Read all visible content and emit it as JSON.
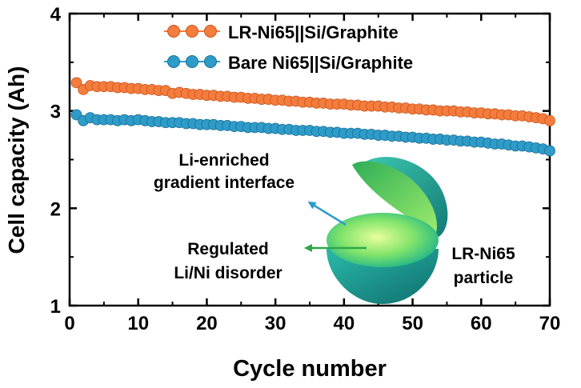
{
  "chart_data": {
    "type": "scatter",
    "xlabel": "Cycle number",
    "ylabel": "Cell capacity (Ah)",
    "xlim": [
      0,
      70
    ],
    "ylim": [
      1,
      4
    ],
    "xticks": [
      "0",
      "10",
      "20",
      "30",
      "40",
      "50",
      "60",
      "70"
    ],
    "yticks": [
      "1",
      "2",
      "3",
      "4"
    ],
    "legend_position": "top-right",
    "series": [
      {
        "name": "LR-Ni65||Si/Graphite",
        "color": "#F47C3C",
        "x": [
          1,
          2,
          3,
          4,
          5,
          6,
          7,
          8,
          9,
          10,
          11,
          12,
          13,
          14,
          15,
          16,
          17,
          18,
          19,
          20,
          21,
          22,
          23,
          24,
          25,
          26,
          27,
          28,
          29,
          30,
          31,
          32,
          33,
          34,
          35,
          36,
          37,
          38,
          39,
          40,
          41,
          42,
          43,
          44,
          45,
          46,
          47,
          48,
          49,
          50,
          51,
          52,
          53,
          54,
          55,
          56,
          57,
          58,
          59,
          60,
          61,
          62,
          63,
          64,
          65,
          66,
          67,
          68,
          69,
          70
        ],
        "y": [
          3.29,
          3.22,
          3.26,
          3.25,
          3.25,
          3.25,
          3.24,
          3.24,
          3.23,
          3.23,
          3.22,
          3.22,
          3.21,
          3.21,
          3.18,
          3.19,
          3.18,
          3.17,
          3.17,
          3.16,
          3.16,
          3.15,
          3.15,
          3.14,
          3.14,
          3.13,
          3.13,
          3.12,
          3.12,
          3.11,
          3.11,
          3.1,
          3.1,
          3.09,
          3.09,
          3.08,
          3.08,
          3.07,
          3.07,
          3.07,
          3.06,
          3.06,
          3.05,
          3.05,
          3.05,
          3.04,
          3.04,
          3.03,
          3.03,
          3.02,
          3.02,
          3.01,
          3.01,
          3.0,
          3.0,
          3.0,
          2.99,
          2.99,
          2.98,
          2.98,
          2.97,
          2.97,
          2.96,
          2.96,
          2.95,
          2.95,
          2.94,
          2.93,
          2.92,
          2.9
        ]
      },
      {
        "name": "Bare Ni65||Si/Graphite",
        "color": "#2E9CC9",
        "x": [
          1,
          2,
          3,
          4,
          5,
          6,
          7,
          8,
          9,
          10,
          11,
          12,
          13,
          14,
          15,
          16,
          17,
          18,
          19,
          20,
          21,
          22,
          23,
          24,
          25,
          26,
          27,
          28,
          29,
          30,
          31,
          32,
          33,
          34,
          35,
          36,
          37,
          38,
          39,
          40,
          41,
          42,
          43,
          44,
          45,
          46,
          47,
          48,
          49,
          50,
          51,
          52,
          53,
          54,
          55,
          56,
          57,
          58,
          59,
          60,
          61,
          62,
          63,
          64,
          65,
          66,
          67,
          68,
          69,
          70
        ],
        "y": [
          2.96,
          2.9,
          2.93,
          2.91,
          2.91,
          2.91,
          2.9,
          2.91,
          2.9,
          2.91,
          2.9,
          2.89,
          2.89,
          2.88,
          2.88,
          2.88,
          2.87,
          2.87,
          2.86,
          2.86,
          2.86,
          2.85,
          2.85,
          2.84,
          2.84,
          2.83,
          2.83,
          2.83,
          2.82,
          2.82,
          2.81,
          2.81,
          2.8,
          2.8,
          2.8,
          2.79,
          2.79,
          2.78,
          2.78,
          2.77,
          2.77,
          2.77,
          2.76,
          2.76,
          2.75,
          2.75,
          2.74,
          2.74,
          2.73,
          2.73,
          2.72,
          2.72,
          2.71,
          2.71,
          2.7,
          2.7,
          2.69,
          2.69,
          2.68,
          2.68,
          2.67,
          2.66,
          2.66,
          2.65,
          2.64,
          2.64,
          2.63,
          2.62,
          2.61,
          2.59
        ]
      }
    ],
    "annotations": {
      "interface_label_1": "Li-enriched",
      "interface_label_2": "gradient interface",
      "disorder_label_1": "Regulated",
      "disorder_label_2": "Li/Ni disorder",
      "particle_label_1": "LR-Ni65",
      "particle_label_2": "particle"
    },
    "colors": {
      "interface_arrow": "#2E9CC9",
      "disorder_arrow": "#2EA84A",
      "shell": "#1F9A8E",
      "core": "#9EE86A"
    }
  }
}
